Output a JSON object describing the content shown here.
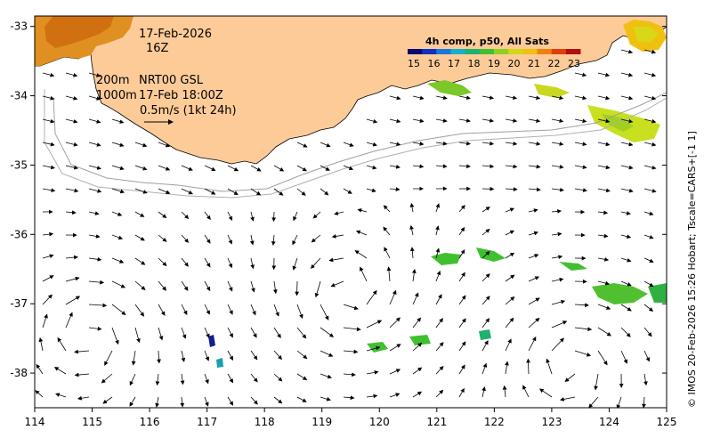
{
  "info": {
    "date": "17-Feb-2026",
    "hour": "16Z",
    "depth_line1": "200m",
    "product": "NRT00 GSL",
    "depth_line2": "1000m",
    "valid_time": "17-Feb 18:00Z",
    "scale_text": "0.5m/s (1kt 24h)"
  },
  "colorbar": {
    "title": "4h comp, p50, All Sats",
    "labels": [
      "15",
      "16",
      "17",
      "18",
      "19",
      "20",
      "21",
      "22",
      "23"
    ],
    "colors": [
      "#0a0a70",
      "#1030c0",
      "#1878e0",
      "#18b0c8",
      "#20b070",
      "#40c030",
      "#90d020",
      "#d0d818",
      "#f0c010",
      "#f08010",
      "#e04010",
      "#b01010"
    ]
  },
  "axes": {
    "x_ticks": [
      "114",
      "115",
      "116",
      "117",
      "118",
      "119",
      "120",
      "121",
      "122",
      "123",
      "124",
      "125"
    ],
    "y_ticks": [
      "-33",
      "-34",
      "-35",
      "-36",
      "-37",
      "-38"
    ],
    "xlim": [
      114,
      125
    ],
    "ylim": [
      -38.5,
      -32.85
    ]
  },
  "credit": "© IMOS 20-Feb-2026 15:26 Hobart; Tscale=CARS+[-1 1]",
  "land_color": "#fdcb98"
}
